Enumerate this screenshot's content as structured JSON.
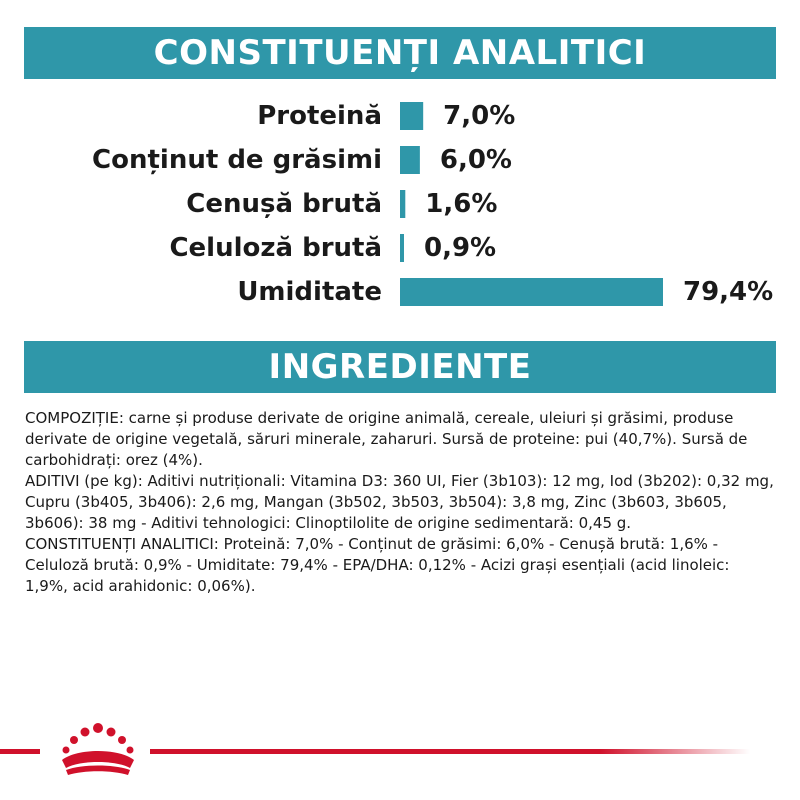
{
  "headers": {
    "analytic": "CONSTITUENȚI ANALITICI",
    "ingredients": "INGREDIENTE"
  },
  "colors": {
    "accent": "#2f97a9",
    "brand_red": "#d0112b"
  },
  "chart_data": {
    "type": "bar",
    "orientation": "horizontal",
    "categories": [
      "Proteină",
      "Conținut de grăsimi",
      "Cenușă brută",
      "Celuloză brută",
      "Umiditate"
    ],
    "values": [
      7.0,
      6.0,
      1.6,
      0.9,
      79.4
    ],
    "value_labels": [
      "7,0%",
      "6,0%",
      "1,6%",
      "0,9%",
      "79,4%"
    ],
    "unit": "%",
    "xlim": [
      0,
      79.4
    ],
    "grid": false,
    "legend": "none",
    "color": "#2f97a9"
  },
  "ingredients": {
    "paragraphs": [
      "COMPOZIȚIE: carne și produse derivate de origine animală, cereale, uleiuri și grăsimi, produse derivate de origine vegetală, săruri minerale, zaharuri. Sursă de proteine: pui (40,7%). Sursă de carbohidrați: orez (4%).",
      "ADITIVI (pe kg): Aditivi nutriționali: Vitamina D3: 360 UI, Fier (3b103): 12 mg, Iod (3b202): 0,32 mg, Cupru (3b405, 3b406): 2,6 mg, Mangan (3b502, 3b503, 3b504): 3,8 mg, Zinc (3b603, 3b605, 3b606): 38 mg - Aditivi tehnologici: Clinoptilolite de origine sedimentară: 0,45 g.",
      "CONSTITUENȚI ANALITICI: Proteină: 7,0% - Conținut de grăsimi: 6,0% - Cenușă brută: 1,6% - Celuloză brută: 0,9% - Umiditate: 79,4% - EPA/DHA: 0,12% - Acizi grași esențiali (acid linoleic: 1,9%, acid arahidonic: 0,06%)."
    ]
  },
  "footer": {
    "logo_icon": "royal-canin-crown-icon"
  }
}
